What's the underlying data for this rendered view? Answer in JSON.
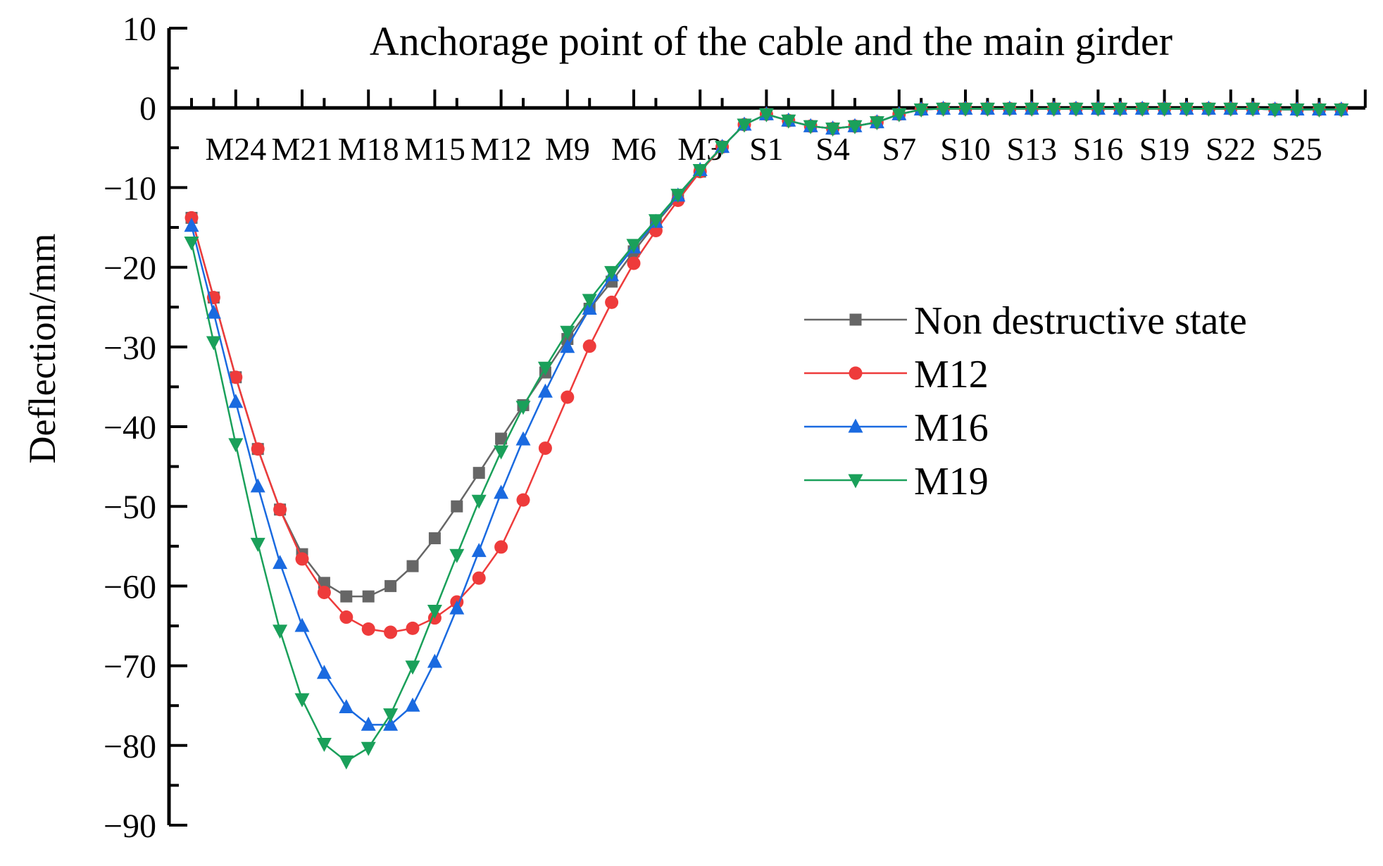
{
  "chart_data": {
    "type": "line",
    "title": "Anchorage point of the cable and the main girder",
    "xlabel": "",
    "ylabel": "Deflection/mm",
    "ylim": [
      -90,
      10
    ],
    "yticks": [
      "10",
      "0",
      "−10",
      "−20",
      "−30",
      "−40",
      "−50",
      "−60",
      "−70",
      "−80",
      "−90"
    ],
    "ytick_values": [
      10,
      0,
      -10,
      -20,
      -30,
      -40,
      -50,
      -60,
      -70,
      -80,
      -90
    ],
    "xtick_labels": [
      "M24",
      "M21",
      "M18",
      "M15",
      "M12",
      "M9",
      "M6",
      "M3",
      "S1",
      "S4",
      "S7",
      "S10",
      "S13",
      "S16",
      "S19",
      "S22",
      "S25"
    ],
    "xtick_index": [
      2,
      5,
      8,
      11,
      14,
      17,
      20,
      23,
      26,
      29,
      32,
      35,
      38,
      41,
      44,
      47,
      50
    ],
    "x": [
      0,
      1,
      2,
      3,
      4,
      5,
      6,
      7,
      8,
      9,
      10,
      11,
      12,
      13,
      14,
      15,
      16,
      17,
      18,
      19,
      20,
      21,
      22,
      23,
      24,
      25,
      26,
      27,
      28,
      29,
      30,
      31,
      32,
      33,
      34,
      35,
      36,
      37,
      38,
      39,
      40,
      41,
      42,
      43,
      44,
      45,
      46,
      47,
      48,
      49,
      50,
      51,
      52
    ],
    "legend_position": "right",
    "grid": false,
    "series": [
      {
        "name": "Non destructive state",
        "color": "#666666",
        "marker": "square",
        "values": [
          -13.8,
          -23.8,
          -33.8,
          -42.8,
          -50.4,
          -56.0,
          -59.6,
          -61.3,
          -61.3,
          -60.0,
          -57.5,
          -54.0,
          -50.0,
          -45.8,
          -41.5,
          -37.3,
          -33.2,
          -29.0,
          -25.2,
          -21.8,
          -18.0,
          -14.5,
          -11.2,
          -8.0,
          -4.9,
          -2.1,
          -0.8,
          -1.6,
          -2.3,
          -2.6,
          -2.3,
          -1.8,
          -0.8,
          -0.2,
          -0.1,
          -0.1,
          -0.1,
          -0.1,
          -0.1,
          -0.1,
          -0.1,
          -0.1,
          -0.1,
          -0.1,
          -0.1,
          -0.1,
          -0.1,
          -0.1,
          -0.1,
          -0.2,
          -0.2,
          -0.2,
          -0.2
        ]
      },
      {
        "name": "M12",
        "color": "#ee3b3b",
        "marker": "circle",
        "values": [
          -13.8,
          -23.8,
          -33.8,
          -42.8,
          -50.4,
          -56.6,
          -60.8,
          -63.9,
          -65.4,
          -65.8,
          -65.3,
          -64.0,
          -62.0,
          -59.0,
          -55.1,
          -49.2,
          -42.7,
          -36.3,
          -29.9,
          -24.4,
          -19.5,
          -15.4,
          -11.6,
          -8.0,
          -4.9,
          -2.1,
          -0.8,
          -1.6,
          -2.3,
          -2.6,
          -2.3,
          -1.8,
          -0.8,
          -0.2,
          -0.1,
          -0.1,
          -0.1,
          -0.1,
          -0.1,
          -0.1,
          -0.1,
          -0.1,
          -0.1,
          -0.1,
          -0.1,
          -0.1,
          -0.1,
          -0.1,
          -0.1,
          -0.2,
          -0.2,
          -0.2,
          -0.2
        ]
      },
      {
        "name": "M16",
        "color": "#1a6ae0",
        "marker": "triangle-up",
        "values": [
          -14.8,
          -25.7,
          -36.9,
          -47.5,
          -57.1,
          -65.0,
          -70.9,
          -75.2,
          -77.4,
          -77.4,
          -75.0,
          -69.5,
          -62.8,
          -55.6,
          -48.3,
          -41.6,
          -35.6,
          -30.0,
          -25.2,
          -21.0,
          -17.5,
          -14.3,
          -11.0,
          -7.8,
          -4.9,
          -2.1,
          -0.8,
          -1.6,
          -2.3,
          -2.6,
          -2.3,
          -1.8,
          -0.8,
          -0.2,
          -0.1,
          -0.1,
          -0.1,
          -0.1,
          -0.1,
          -0.1,
          -0.1,
          -0.1,
          -0.1,
          -0.1,
          -0.1,
          -0.1,
          -0.1,
          -0.1,
          -0.1,
          -0.2,
          -0.2,
          -0.2,
          -0.2
        ]
      },
      {
        "name": "M19",
        "color": "#1aa05a",
        "marker": "triangle-down",
        "values": [
          -16.9,
          -29.4,
          -42.2,
          -54.7,
          -65.6,
          -74.2,
          -79.8,
          -82.0,
          -80.3,
          -76.1,
          -70.1,
          -63.1,
          -56.1,
          -49.3,
          -43.1,
          -37.5,
          -32.6,
          -28.1,
          -24.1,
          -20.6,
          -17.2,
          -14.1,
          -10.9,
          -7.8,
          -4.9,
          -2.1,
          -0.8,
          -1.6,
          -2.3,
          -2.6,
          -2.3,
          -1.8,
          -0.8,
          -0.2,
          -0.1,
          -0.1,
          -0.1,
          -0.1,
          -0.1,
          -0.1,
          -0.1,
          -0.1,
          -0.1,
          -0.1,
          -0.1,
          -0.1,
          -0.1,
          -0.1,
          -0.1,
          -0.2,
          -0.2,
          -0.2,
          -0.2
        ]
      }
    ]
  }
}
